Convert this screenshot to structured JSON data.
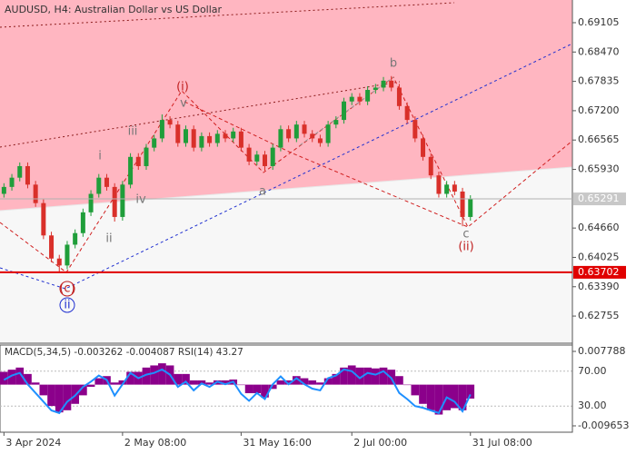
{
  "chart_data": {
    "type": "candlestick",
    "title": "AUDUSD, H4:  Australian Dollar vs US Dollar",
    "open": [
      0.654,
      0.6555,
      0.6575,
      0.66,
      0.656,
      0.652,
      0.645,
      0.64,
      0.6385,
      0.643,
      0.6455,
      0.65,
      0.654,
      0.6575,
      0.6555,
      0.649,
      0.656,
      0.662,
      0.66,
      0.664,
      0.666,
      0.67,
      0.669,
      0.665,
      0.668,
      0.664,
      0.6665,
      0.665,
      0.667,
      0.666,
      0.6675,
      0.664,
      0.661,
      0.6625,
      0.66,
      0.664,
      0.668,
      0.666,
      0.669,
      0.667,
      0.666,
      0.665,
      0.669,
      0.67,
      0.674,
      0.675,
      0.674,
      0.6765,
      0.677,
      0.6785,
      0.677,
      0.673,
      0.67,
      0.666,
      0.662,
      0.658,
      0.654,
      0.656,
      0.6545,
      0.649
    ],
    "high": [
      0.6563,
      0.6583,
      0.6608,
      0.6608,
      0.6568,
      0.6528,
      0.6458,
      0.6408,
      0.6438,
      0.6463,
      0.6508,
      0.6548,
      0.6583,
      0.6583,
      0.6563,
      0.6568,
      0.6628,
      0.6628,
      0.6648,
      0.6668,
      0.6712,
      0.6708,
      0.6698,
      0.6688,
      0.6688,
      0.6673,
      0.6673,
      0.6678,
      0.6678,
      0.6683,
      0.6683,
      0.6648,
      0.6633,
      0.6633,
      0.6648,
      0.6688,
      0.6688,
      0.6698,
      0.6698,
      0.6678,
      0.6668,
      0.6698,
      0.6708,
      0.6748,
      0.6758,
      0.6758,
      0.6773,
      0.6778,
      0.6793,
      0.6795,
      0.6778,
      0.6738,
      0.6708,
      0.6668,
      0.6628,
      0.6588,
      0.6568,
      0.6568,
      0.6553,
      0.6537
    ],
    "low": [
      0.6532,
      0.6547,
      0.6567,
      0.6552,
      0.6512,
      0.6442,
      0.6392,
      0.637,
      0.6377,
      0.6422,
      0.6447,
      0.6492,
      0.6532,
      0.6547,
      0.648,
      0.6482,
      0.6552,
      0.6592,
      0.6592,
      0.6632,
      0.6652,
      0.6682,
      0.6642,
      0.6642,
      0.6632,
      0.6632,
      0.6642,
      0.6642,
      0.6652,
      0.6652,
      0.6632,
      0.6602,
      0.6602,
      0.659,
      0.6592,
      0.6632,
      0.6652,
      0.6652,
      0.6662,
      0.6652,
      0.6642,
      0.6642,
      0.6682,
      0.6692,
      0.6732,
      0.6732,
      0.6732,
      0.6757,
      0.6762,
      0.6762,
      0.6722,
      0.6692,
      0.6652,
      0.6612,
      0.6572,
      0.6532,
      0.6532,
      0.6537,
      0.647,
      0.6482
    ],
    "close": [
      0.6555,
      0.6575,
      0.66,
      0.656,
      0.652,
      0.645,
      0.64,
      0.6385,
      0.643,
      0.6455,
      0.65,
      0.654,
      0.6575,
      0.6555,
      0.649,
      0.656,
      0.662,
      0.66,
      0.664,
      0.666,
      0.67,
      0.669,
      0.665,
      0.668,
      0.664,
      0.6665,
      0.665,
      0.667,
      0.666,
      0.6675,
      0.664,
      0.661,
      0.6625,
      0.66,
      0.664,
      0.668,
      0.666,
      0.669,
      0.667,
      0.666,
      0.665,
      0.669,
      0.67,
      0.674,
      0.675,
      0.674,
      0.6765,
      0.677,
      0.6785,
      0.677,
      0.673,
      0.67,
      0.666,
      0.662,
      0.658,
      0.654,
      0.656,
      0.6545,
      0.649,
      0.65291
    ],
    "up_color": "#1f9e3a",
    "down_color": "#d9302a",
    "xlim": [
      -0.5,
      71.9
    ],
    "xticks": [
      {
        "value": 0,
        "label": "3 Apr 2024"
      },
      {
        "value": 15,
        "label": "2 May 08:00"
      },
      {
        "value": 30,
        "label": "31 May 16:00"
      },
      {
        "value": 44,
        "label": "2 Jul 00:00"
      },
      {
        "value": 59,
        "label": "31 Jul 08:00"
      }
    ],
    "ylim": [
      0.62167,
      0.69596
    ],
    "yticks": [
      0.69105,
      {
        "value": 0.6847,
        "label": "0.68470"
      },
      0.67835,
      {
        "value": 0.672,
        "label": "0.67200"
      },
      0.66565,
      {
        "value": 0.6593,
        "label": "0.65930"
      },
      {
        "value": 0.6466,
        "label": "0.64660"
      },
      0.64025,
      {
        "value": 0.6339,
        "label": "0.63390"
      },
      0.62755
    ],
    "bid": 0.65291,
    "support": 0.63702,
    "wave_labels": [
      "(i)",
      "v",
      "iii",
      "i",
      "ii",
      "iv",
      "a",
      "b",
      "c",
      "(ii)",
      "(c)",
      "ii"
    ],
    "indicator": {
      "label": "MACD(5,34,5) -0.003262 -0.004087 RSI(14) 43.27",
      "macd_color": "#8b008b",
      "rsi_color": "#1e90ff",
      "macd": [
        0.003,
        0.0035,
        0.004,
        0.0025,
        0.0005,
        -0.0025,
        -0.005,
        -0.0065,
        -0.006,
        -0.0045,
        -0.0025,
        -0.0005,
        0.0015,
        0.002,
        0.0005,
        0.001,
        0.003,
        0.003,
        0.004,
        0.0045,
        0.005,
        0.0045,
        0.0025,
        0.0025,
        0.001,
        0.001,
        0.0005,
        0.001,
        0.001,
        0.0012,
        0.0,
        -0.002,
        -0.002,
        -0.003,
        -0.001,
        0.001,
        0.001,
        0.002,
        0.0015,
        0.001,
        0.0005,
        0.0015,
        0.0025,
        0.004,
        0.0045,
        0.004,
        0.004,
        0.0038,
        0.004,
        0.0035,
        0.002,
        0.0,
        -0.0025,
        -0.0045,
        -0.006,
        -0.007,
        -0.006,
        -0.0055,
        -0.006,
        -0.003262
      ],
      "rsi": [
        60,
        65,
        68,
        55,
        45,
        35,
        25,
        22,
        35,
        42,
        52,
        58,
        65,
        60,
        42,
        55,
        68,
        62,
        66,
        68,
        72,
        66,
        52,
        58,
        48,
        56,
        52,
        58,
        55,
        58,
        44,
        36,
        45,
        38,
        55,
        64,
        55,
        62,
        55,
        50,
        48,
        62,
        65,
        72,
        70,
        62,
        68,
        66,
        70,
        62,
        45,
        38,
        30,
        28,
        25,
        22,
        40,
        35,
        24,
        43.27
      ],
      "macd_lim": [
        -0.011142,
        0.009277
      ],
      "macd_ticks": [
        0.007788,
        -0.009653
      ],
      "rsi_lim": [
        0,
        100
      ],
      "rsi_ticks": [
        {
          "value": 70,
          "label": "70.00"
        },
        {
          "value": 30,
          "label": "30.00"
        }
      ]
    }
  }
}
